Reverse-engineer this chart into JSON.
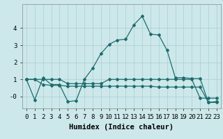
{
  "title": "",
  "xlabel": "Humidex (Indice chaleur)",
  "background_color": "#cce8ea",
  "grid_color": "#aacdd4",
  "line_color": "#1a6e6e",
  "x_series1": [
    0,
    1,
    2,
    3,
    4,
    5,
    6,
    7,
    8,
    9,
    10,
    11,
    12,
    13,
    14,
    15,
    16,
    17,
    18,
    19,
    20,
    21,
    22,
    23
  ],
  "y_series1": [
    1.0,
    -0.2,
    1.1,
    0.7,
    0.7,
    -0.3,
    -0.25,
    1.0,
    1.65,
    2.5,
    3.05,
    3.3,
    3.35,
    4.2,
    4.7,
    3.65,
    3.6,
    2.7,
    1.1,
    1.1,
    1.05,
    1.05,
    -0.35,
    -0.3
  ],
  "x_series2": [
    0,
    1,
    2,
    3,
    4,
    5,
    6,
    7,
    8,
    9,
    10,
    11,
    12,
    13,
    14,
    15,
    16,
    17,
    18,
    19,
    20,
    21,
    22,
    23
  ],
  "y_series2": [
    1.0,
    1.0,
    1.0,
    1.0,
    1.0,
    0.75,
    0.75,
    0.75,
    0.75,
    0.75,
    1.0,
    1.0,
    1.0,
    1.0,
    1.0,
    1.0,
    1.0,
    1.0,
    1.0,
    1.0,
    1.0,
    -0.1,
    -0.1,
    -0.1
  ],
  "x_series3": [
    0,
    1,
    2,
    3,
    4,
    5,
    6,
    7,
    8,
    9,
    10,
    11,
    12,
    13,
    14,
    15,
    16,
    17,
    18,
    19,
    20,
    21,
    22,
    23
  ],
  "y_series3": [
    1.0,
    1.0,
    0.7,
    0.65,
    0.65,
    0.6,
    0.6,
    0.6,
    0.6,
    0.6,
    0.6,
    0.6,
    0.6,
    0.6,
    0.6,
    0.6,
    0.55,
    0.55,
    0.55,
    0.55,
    0.55,
    0.55,
    -0.35,
    -0.35
  ],
  "ylim": [
    -0.7,
    5.4
  ],
  "xlim": [
    -0.5,
    23.5
  ],
  "yticks": [
    0,
    1,
    2,
    3,
    4
  ],
  "ytick_labels": [
    "-0",
    "1",
    "2",
    "3",
    "4"
  ],
  "xticks": [
    0,
    1,
    2,
    3,
    4,
    5,
    6,
    7,
    8,
    9,
    10,
    11,
    12,
    13,
    14,
    15,
    16,
    17,
    18,
    19,
    20,
    21,
    22,
    23
  ],
  "marker_size": 2.0,
  "linewidth": 0.9,
  "axis_fontsize": 7.5,
  "tick_fontsize": 6.5
}
